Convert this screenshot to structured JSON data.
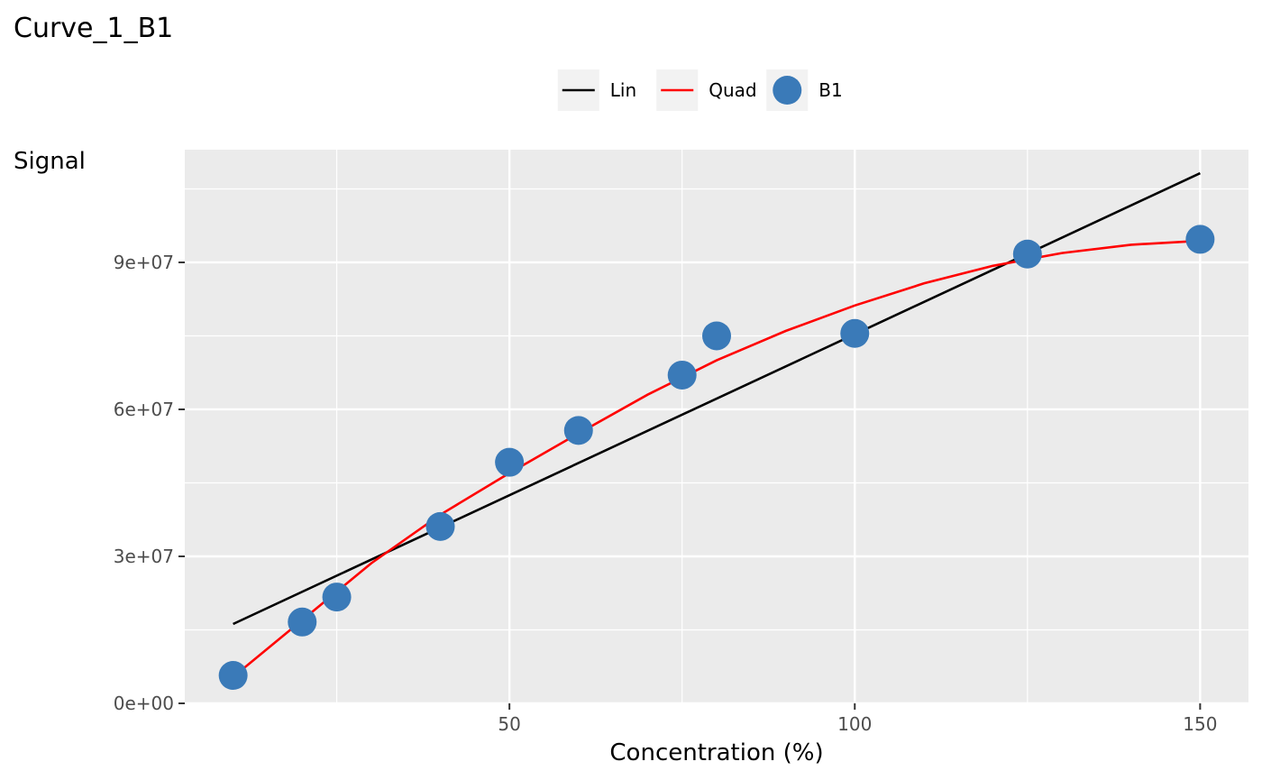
{
  "chart_data": {
    "type": "scatter",
    "title": "Curve_1_B1",
    "xlabel": "Concentration (%)",
    "ylabel": "Signal",
    "xlim": [
      3,
      157
    ],
    "ylim": [
      0,
      113000000
    ],
    "x_ticks": [
      50,
      100,
      150
    ],
    "x_tick_labels": [
      "50",
      "100",
      "150"
    ],
    "y_ticks": [
      0,
      30000000,
      60000000,
      90000000
    ],
    "y_tick_labels": [
      "0e+00",
      "3e+07",
      "6e+07",
      "9e+07"
    ],
    "grid": true,
    "legend_position": "top",
    "legend": [
      {
        "label": "Lin",
        "kind": "line",
        "color": "#000000"
      },
      {
        "label": "Quad",
        "kind": "line",
        "color": "#ff0000"
      },
      {
        "label": "B1",
        "kind": "point",
        "color": "#3a7ab8"
      }
    ],
    "series": [
      {
        "name": "B1",
        "kind": "point",
        "color": "#3a7ab8",
        "x": [
          10,
          20,
          25,
          40,
          50,
          60,
          75,
          80,
          100,
          125,
          150
        ],
        "y": [
          5700000,
          16600000,
          21700000,
          36100000,
          49200000,
          55700000,
          67000000,
          75000000,
          75500000,
          91700000,
          94700000
        ]
      },
      {
        "name": "Lin",
        "kind": "line",
        "color": "#000000",
        "x": [
          10,
          150
        ],
        "y": [
          16200000,
          108200000
        ]
      },
      {
        "name": "Quad",
        "kind": "line",
        "color": "#ff0000",
        "x": [
          10,
          20,
          30,
          40,
          50,
          60,
          70,
          80,
          90,
          100,
          110,
          120,
          130,
          140,
          150
        ],
        "y": [
          5400000,
          17000000,
          28600000,
          38500000,
          47000000,
          55100000,
          63000000,
          70000000,
          76000000,
          81200000,
          85700000,
          89300000,
          91900000,
          93600000,
          94400000
        ]
      }
    ]
  }
}
